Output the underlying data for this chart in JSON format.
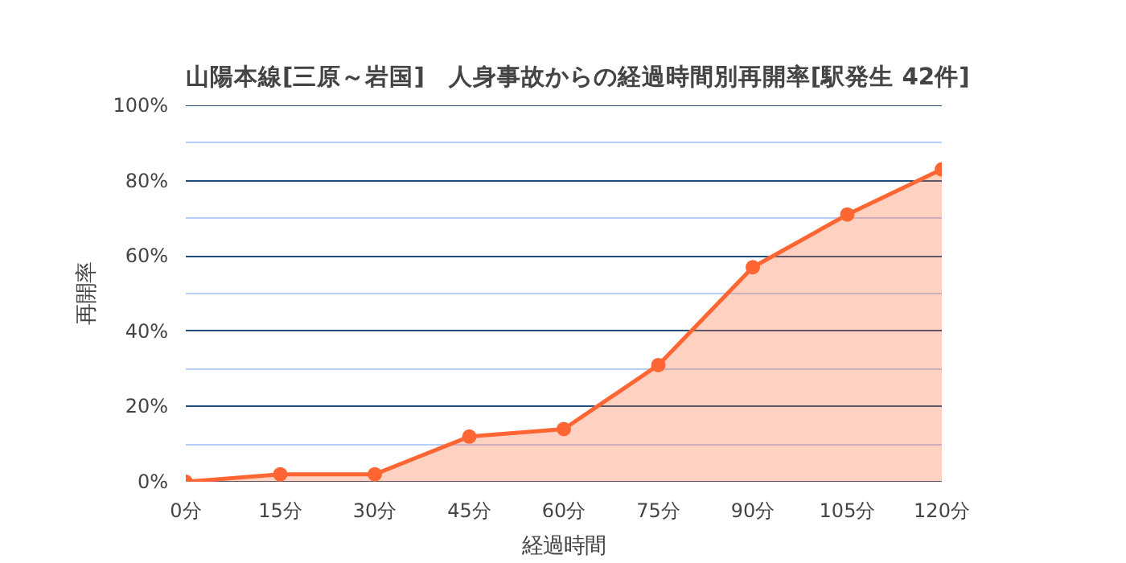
{
  "chart_data": {
    "type": "area",
    "title": "山陽本線[三原～岩国]　人身事故からの経過時間別再開率[駅発生 42件]",
    "xlabel": "経過時間",
    "ylabel": "再開率",
    "categories": [
      "0分",
      "15分",
      "30分",
      "45分",
      "60分",
      "75分",
      "90分",
      "105分",
      "120分"
    ],
    "series": [
      {
        "color": "#ff6633",
        "values": [
          0,
          2,
          2,
          12,
          14,
          31,
          57,
          71,
          83
        ]
      }
    ],
    "ylim": [
      0,
      100
    ],
    "yticks": [
      {
        "value": 0,
        "label": "0%"
      },
      {
        "value": 10,
        "label": null
      },
      {
        "value": 20,
        "label": "20%"
      },
      {
        "value": 30,
        "label": null
      },
      {
        "value": 40,
        "label": "40%"
      },
      {
        "value": 50,
        "label": null
      },
      {
        "value": 60,
        "label": "60%"
      },
      {
        "value": 70,
        "label": null
      },
      {
        "value": 80,
        "label": "80%"
      },
      {
        "value": 90,
        "label": null
      },
      {
        "value": 100,
        "label": "100%"
      }
    ],
    "grid": "y",
    "marker": "circle",
    "line_style": "solid"
  }
}
